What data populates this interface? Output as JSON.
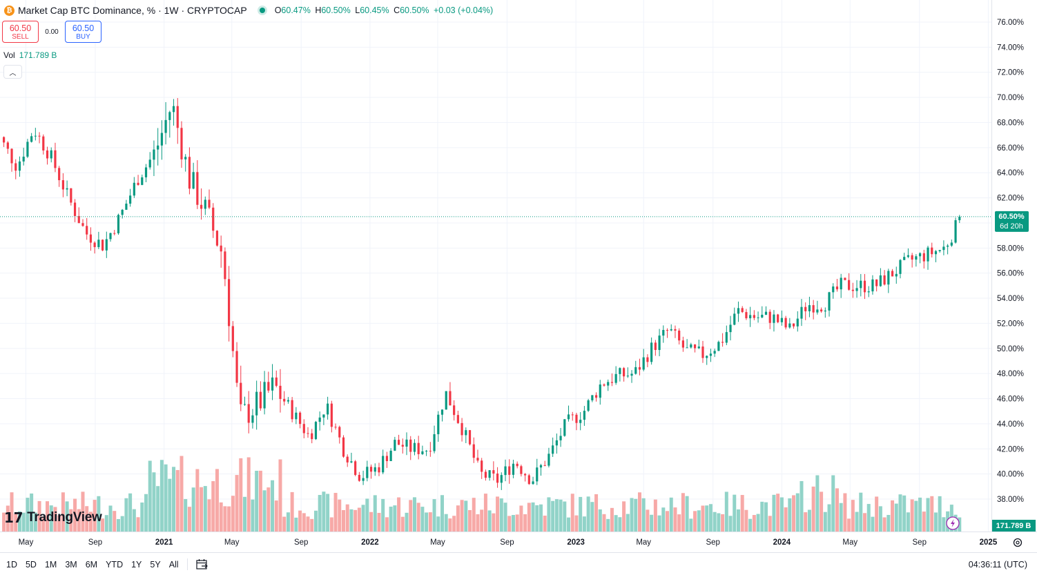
{
  "header": {
    "title": "Market Cap BTC Dominance, % · 1W · CRYPTOCAP",
    "icon": "bitcoin-icon",
    "open_label": "O",
    "open": "60.47%",
    "high_label": "H",
    "high": "60.50%",
    "low_label": "L",
    "low": "60.45%",
    "close_label": "C",
    "close": "60.50%",
    "change": "+0.03 (+0.04%)"
  },
  "trade": {
    "sell_price": "60.50",
    "sell_label": "SELL",
    "spread": "0.00",
    "buy_price": "60.50",
    "buy_label": "BUY"
  },
  "volume": {
    "label": "Vol",
    "value": "171.789 B"
  },
  "logo": {
    "text": "TradingView"
  },
  "bottom": {
    "ranges": [
      "1D",
      "5D",
      "1M",
      "3M",
      "6M",
      "YTD",
      "1Y",
      "5Y",
      "All"
    ],
    "clock": "04:36:11 (UTC)"
  },
  "colors": {
    "up": "#089981",
    "down": "#f23645",
    "vol_up": "#91d3c8",
    "vol_down": "#f7a9a7",
    "grid": "#f0f3fa",
    "axis_text": "#131722"
  },
  "chart_data": {
    "type": "candlestick",
    "title": "Market Cap BTC Dominance, % · 1W · CRYPTOCAP",
    "ylabel": "%",
    "ylim": [
      35.6,
      77
    ],
    "y_ticks": [
      "76.00%",
      "74.00%",
      "72.00%",
      "70.00%",
      "68.00%",
      "66.00%",
      "64.00%",
      "62.00%",
      "60.00%",
      "58.00%",
      "56.00%",
      "54.00%",
      "52.00%",
      "50.00%",
      "48.00%",
      "46.00%",
      "44.00%",
      "42.00%",
      "40.00%",
      "38.00%"
    ],
    "x_ticks": [
      "May",
      "Sep",
      "2021",
      "May",
      "Sep",
      "2022",
      "May",
      "Sep",
      "2023",
      "May",
      "Sep",
      "2024",
      "May",
      "Sep",
      "2025"
    ],
    "last_price_label": "60.50%",
    "countdown_label": "6d 20h",
    "volume_label": "171.789 B",
    "anchors": [
      [
        "2020-03",
        66.8
      ],
      [
        "2020-04",
        64.5
      ],
      [
        "2020-05",
        67.5
      ],
      [
        "2020-06",
        65.2
      ],
      [
        "2020-07",
        62.0
      ],
      [
        "2020-08",
        59.2
      ],
      [
        "2020-09",
        58.2
      ],
      [
        "2020-10",
        60.5
      ],
      [
        "2020-11",
        63.5
      ],
      [
        "2020-12",
        65.5
      ],
      [
        "2021-01",
        69.5
      ],
      [
        "2021-02",
        63.5
      ],
      [
        "2021-03",
        61.0
      ],
      [
        "2021-04",
        57.5
      ],
      [
        "2021-05",
        44.5
      ],
      [
        "2021-06",
        45.5
      ],
      [
        "2021-07",
        47.0
      ],
      [
        "2021-08",
        45.0
      ],
      [
        "2021-09",
        43.0
      ],
      [
        "2021-10",
        45.5
      ],
      [
        "2021-11",
        42.0
      ],
      [
        "2021-12",
        39.8
      ],
      [
        "2022-01",
        40.5
      ],
      [
        "2022-02",
        42.5
      ],
      [
        "2022-03",
        42.0
      ],
      [
        "2022-04",
        42.0
      ],
      [
        "2022-05",
        46.5
      ],
      [
        "2022-06",
        43.5
      ],
      [
        "2022-07",
        40.0
      ],
      [
        "2022-08",
        39.5
      ],
      [
        "2022-09",
        41.0
      ],
      [
        "2022-10",
        39.5
      ],
      [
        "2022-11",
        41.5
      ],
      [
        "2022-12",
        44.0
      ],
      [
        "2023-01",
        45.0
      ],
      [
        "2023-02",
        47.2
      ],
      [
        "2023-03",
        47.8
      ],
      [
        "2023-04",
        48.0
      ],
      [
        "2023-05",
        50.0
      ],
      [
        "2023-06",
        51.5
      ],
      [
        "2023-07",
        49.8
      ],
      [
        "2023-08",
        49.5
      ],
      [
        "2023-09",
        50.5
      ],
      [
        "2023-10",
        53.0
      ],
      [
        "2023-11",
        52.5
      ],
      [
        "2023-12",
        52.5
      ],
      [
        "2024-01",
        51.5
      ],
      [
        "2024-02",
        53.5
      ],
      [
        "2024-03",
        53.5
      ],
      [
        "2024-04",
        55.0
      ],
      [
        "2024-05",
        55.0
      ],
      [
        "2024-06",
        55.0
      ],
      [
        "2024-07",
        56.0
      ],
      [
        "2024-08",
        57.0
      ],
      [
        "2024-09",
        57.5
      ],
      [
        "2024-10",
        58.0
      ],
      [
        "2024-11",
        60.5
      ]
    ]
  }
}
